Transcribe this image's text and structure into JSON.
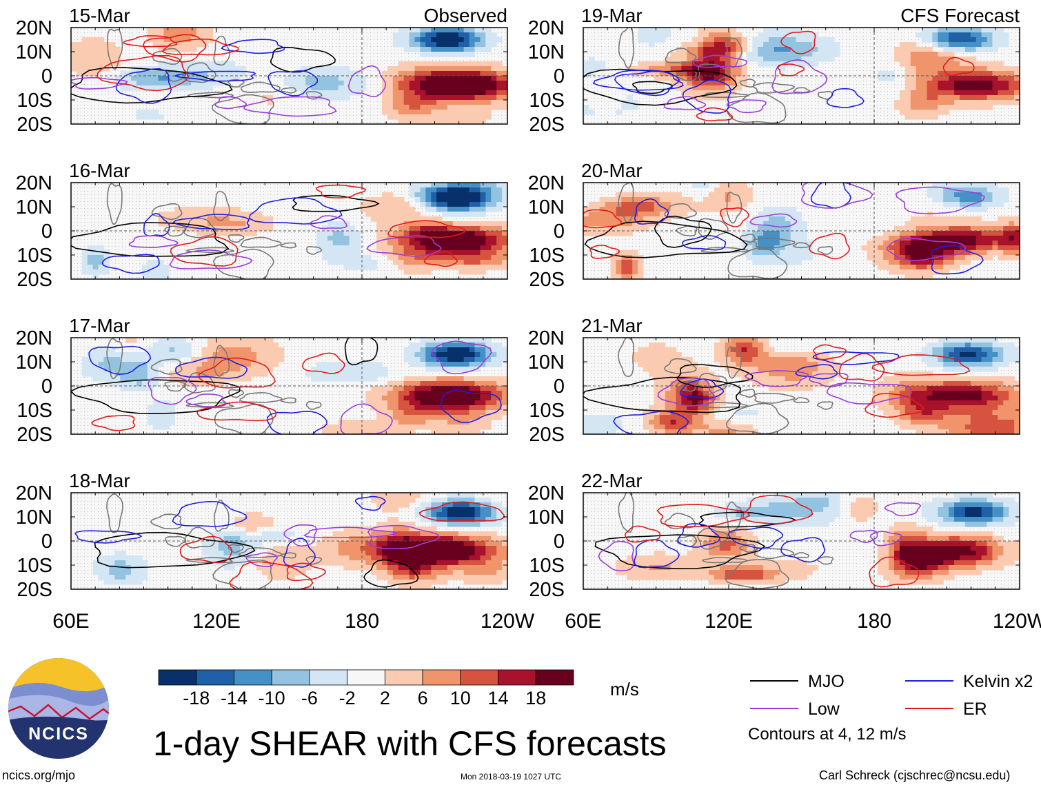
{
  "chart_data": {
    "type": "heatmap",
    "title": "1-day SHEAR with CFS forecasts",
    "variable": "SHEAR",
    "units": "m/s",
    "columns": [
      {
        "label": "Observed",
        "dates": [
          "15-Mar",
          "16-Mar",
          "17-Mar",
          "18-Mar"
        ]
      },
      {
        "label": "CFS Forecast",
        "dates": [
          "19-Mar",
          "20-Mar",
          "21-Mar",
          "22-Mar"
        ]
      }
    ],
    "x_axis": {
      "ticks": [
        "60E",
        "120E",
        "180",
        "120W"
      ],
      "lon_range": [
        60,
        240
      ]
    },
    "y_axis": {
      "ticks": [
        "20N",
        "10N",
        "0",
        "10S",
        "20S"
      ],
      "lat_range": [
        -20,
        20
      ]
    },
    "colorbar": {
      "ticks": [
        "-18",
        "-14",
        "-10",
        "-6",
        "-2",
        "2",
        "6",
        "10",
        "14",
        "18"
      ],
      "colors": [
        "#08306b",
        "#1f60a6",
        "#4590c6",
        "#93c3e0",
        "#d4e6f3",
        "#f7f7f7",
        "#fbcbb1",
        "#f0946b",
        "#d6543f",
        "#a8132b",
        "#67001f"
      ]
    },
    "legend": [
      {
        "name": "MJO",
        "color": "#000000"
      },
      {
        "name": "Kelvin x2",
        "color": "#1e1ee0"
      },
      {
        "name": "Low",
        "color": "#9a3fd6"
      },
      {
        "name": "ER",
        "color": "#e01a1a"
      }
    ],
    "contour_note": "Contours at 4, 12 m/s"
  },
  "logo": {
    "text": "NCICS"
  },
  "footer": {
    "url": "ncics.org/mjo",
    "timestamp": "Mon 2018-03-19 1027 UTC",
    "credit": "Carl Schreck (cjschrec@ncsu.edu)"
  }
}
